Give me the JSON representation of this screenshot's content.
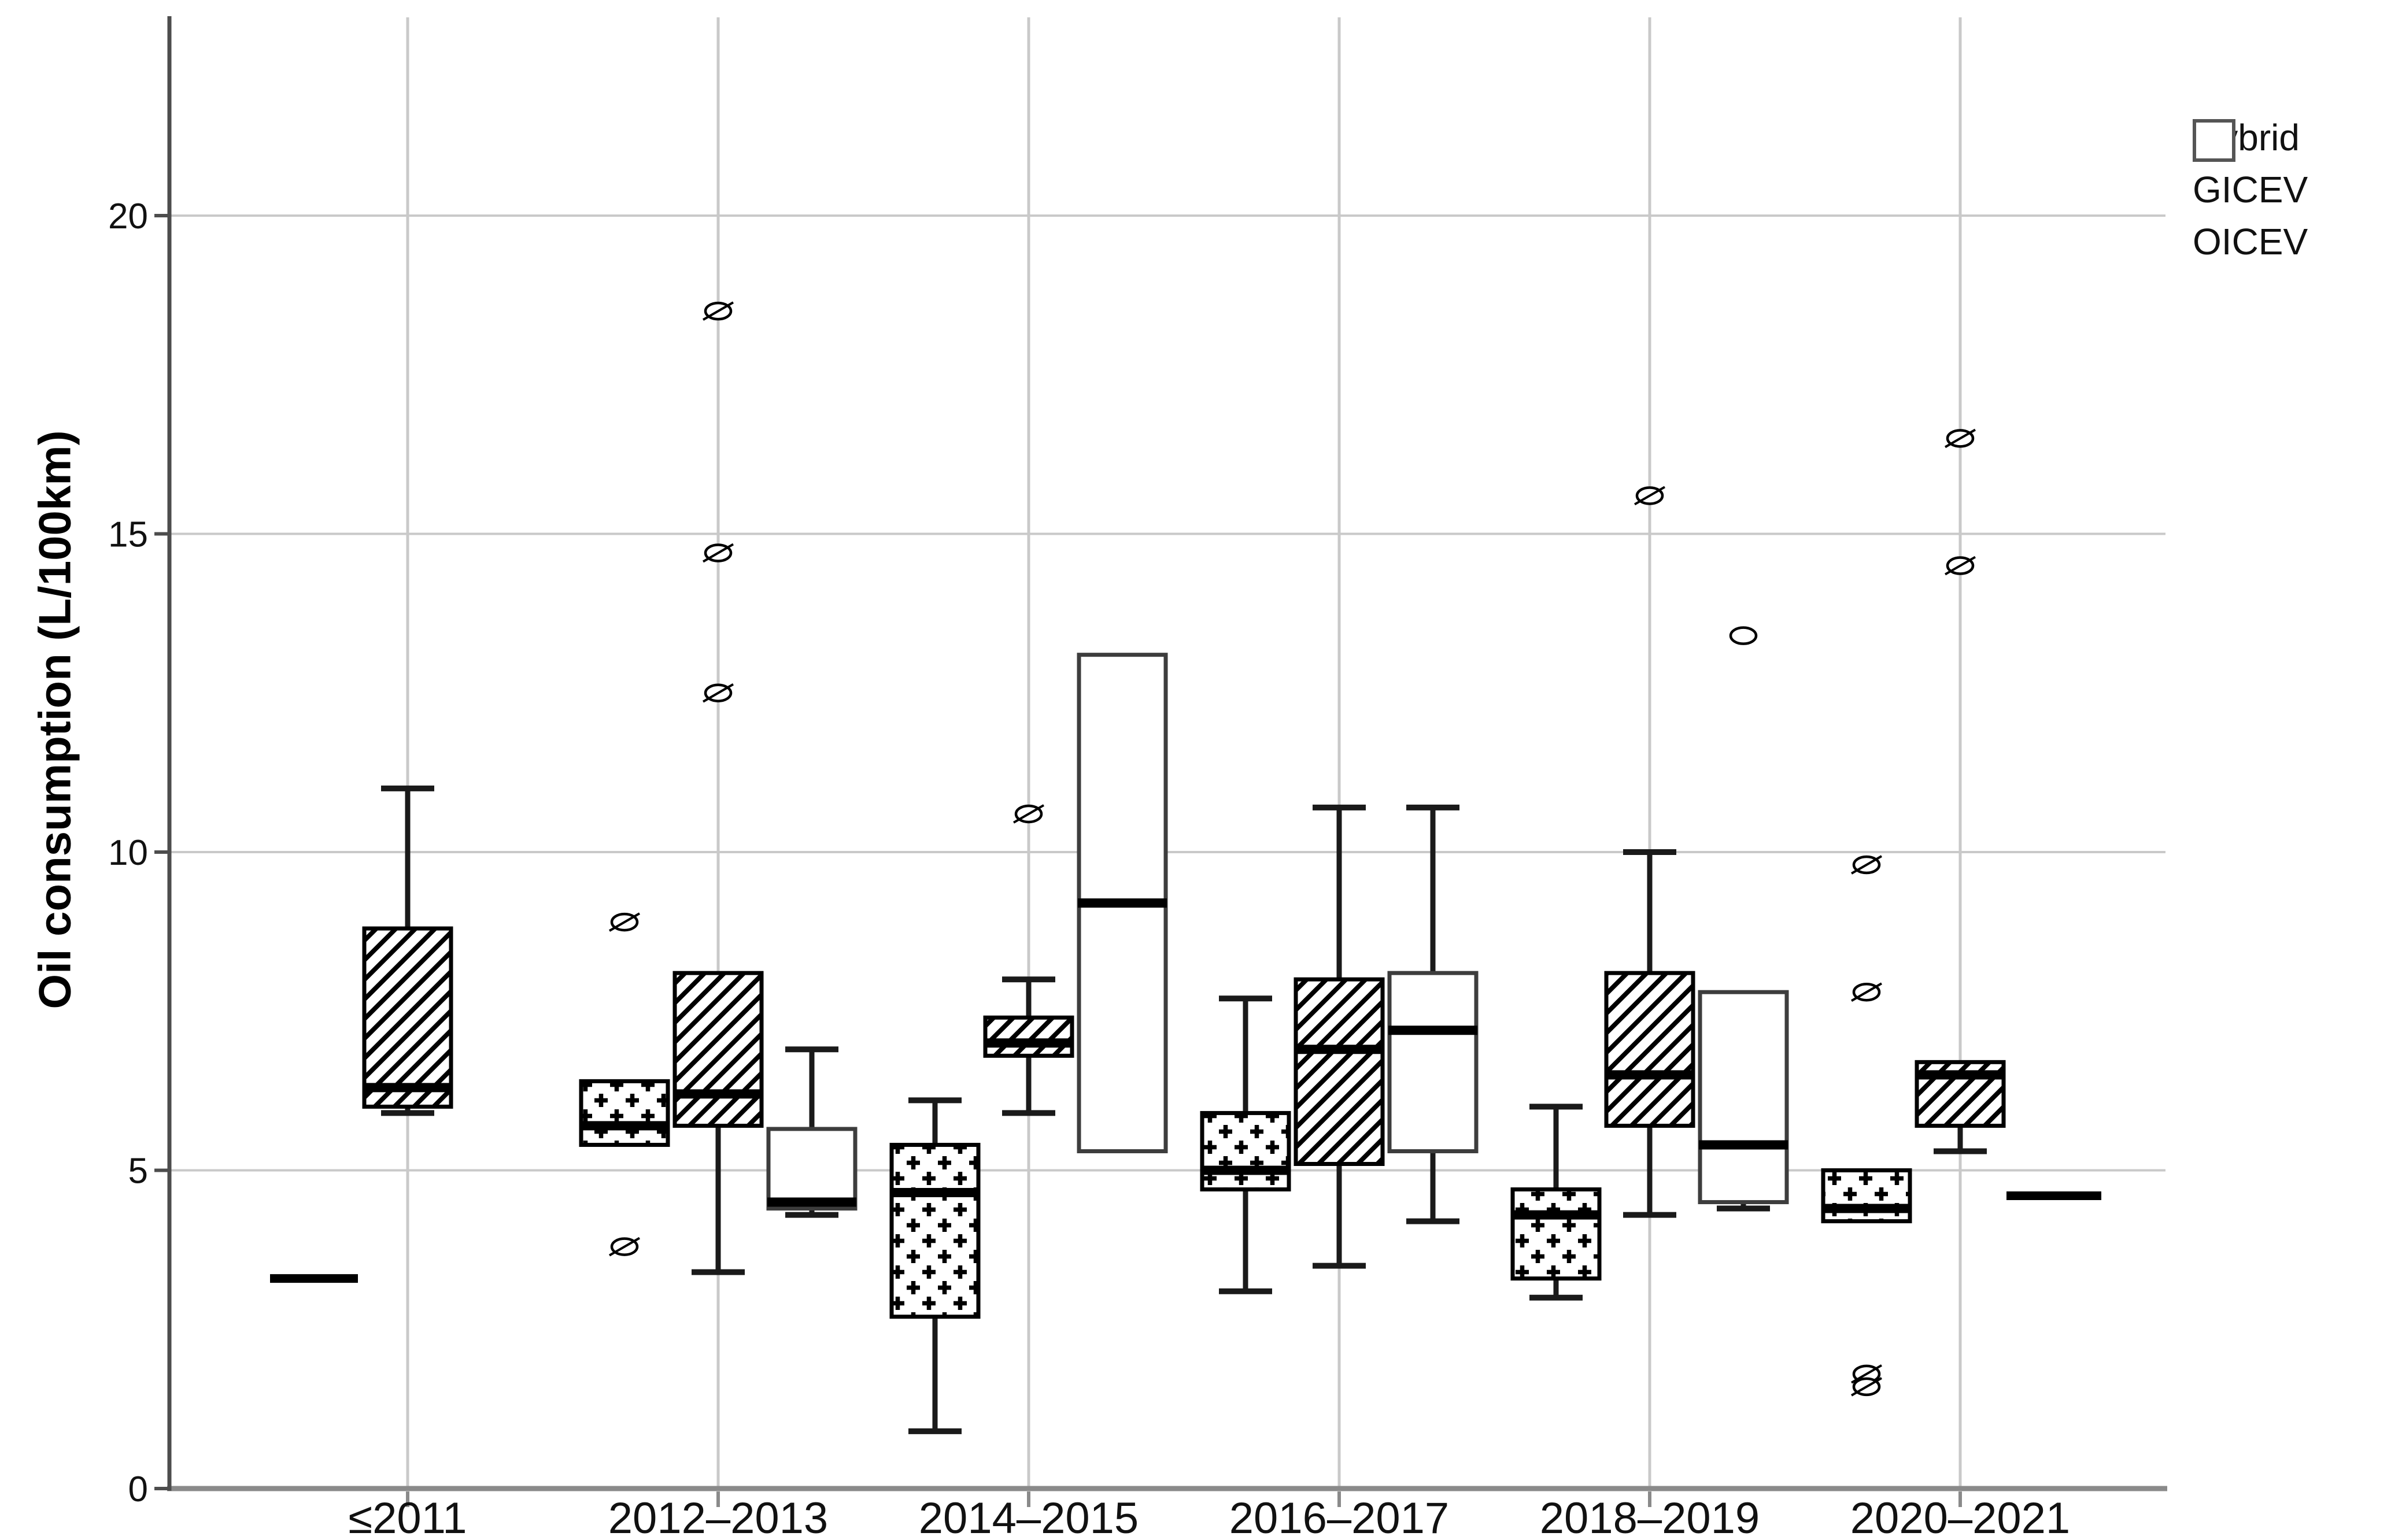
{
  "chart_data": {
    "type": "grouped_boxplot",
    "title": "",
    "xlabel": "",
    "ylabel": "Oil consumption (L/100km)",
    "ylim": [
      0,
      23.1
    ],
    "yticks": [
      0,
      5,
      10,
      15,
      20
    ],
    "grid": true,
    "legend_position": "top-right",
    "categories": [
      "≤2011",
      "2012–2013",
      "2014–2015",
      "2016–2017",
      "2018–2019",
      "2020–2021"
    ],
    "series": [
      {
        "name": "Hybrid",
        "pattern": "plus-grid",
        "boxes": [
          {
            "type": "line",
            "value": 3.3
          },
          {
            "type": "box",
            "q1": 5.4,
            "median": 5.7,
            "q3": 6.4,
            "outliers": [
              8.9,
              3.8
            ]
          },
          {
            "type": "box",
            "q1": 2.7,
            "median": 4.65,
            "q3": 5.4,
            "whisker_low": 0.9,
            "whisker_high": 6.1
          },
          {
            "type": "box",
            "q1": 4.7,
            "median": 5.0,
            "q3": 5.9,
            "whisker_low": 3.1,
            "whisker_high": 7.7
          },
          {
            "type": "box",
            "q1": 3.3,
            "median": 4.3,
            "q3": 4.7,
            "whisker_low": 3.0,
            "whisker_high": 6.0
          },
          {
            "type": "box",
            "q1": 4.2,
            "median": 4.4,
            "q3": 5.0,
            "outliers": [
              9.8,
              7.8,
              1.8,
              1.6
            ]
          }
        ]
      },
      {
        "name": "GICEV",
        "pattern": "diagonal-hatch",
        "boxes": [
          {
            "type": "box",
            "q1": 6.0,
            "median": 6.3,
            "q3": 8.8,
            "whisker_low": 5.9,
            "whisker_high": 11.0
          },
          {
            "type": "box",
            "q1": 5.7,
            "median": 6.2,
            "q3": 8.1,
            "whisker_low": 3.4,
            "outliers": [
              18.5,
              14.7,
              12.5
            ]
          },
          {
            "type": "box",
            "q1": 6.8,
            "median": 7.0,
            "q3": 7.4,
            "whisker_low": 5.9,
            "whisker_high": 8.0,
            "outliers": [
              10.6
            ]
          },
          {
            "type": "box",
            "q1": 5.1,
            "median": 6.9,
            "q3": 8.0,
            "whisker_low": 3.5,
            "whisker_high": 10.7
          },
          {
            "type": "box",
            "q1": 5.7,
            "median": 6.5,
            "q3": 8.1,
            "whisker_low": 4.3,
            "whisker_high": 10.0,
            "outliers": [
              15.6
            ]
          },
          {
            "type": "box",
            "q1": 5.7,
            "median": 6.5,
            "q3": 6.7,
            "whisker_low": 5.3,
            "outliers": [
              16.5,
              14.5
            ]
          }
        ]
      },
      {
        "name": "OICEV",
        "pattern": "none",
        "boxes": [
          null,
          {
            "type": "box",
            "q1": 4.4,
            "median": 4.5,
            "q3": 5.65,
            "whisker_low": 4.3,
            "whisker_high": 6.9
          },
          {
            "type": "box",
            "q1": 5.3,
            "median": 9.2,
            "q3": 13.1
          },
          {
            "type": "box",
            "q1": 5.3,
            "median": 7.2,
            "q3": 8.1,
            "whisker_low": 4.2,
            "whisker_high": 10.7
          },
          {
            "type": "box",
            "q1": 4.5,
            "median": 5.4,
            "q3": 7.8,
            "whisker_low": 4.4,
            "outliers": [
              13.4
            ],
            "outlier_style": "plain"
          },
          {
            "type": "line",
            "value": 4.6
          }
        ]
      }
    ],
    "colors": {
      "box_stroke": "#000000",
      "oicev_box_stroke": "#3d3d3d",
      "median": "#000000",
      "gridline": "#c9c9c9",
      "axis_bottom": "#8a8a8a",
      "axis_left": "#4d4d4d",
      "text": "#111111"
    }
  }
}
